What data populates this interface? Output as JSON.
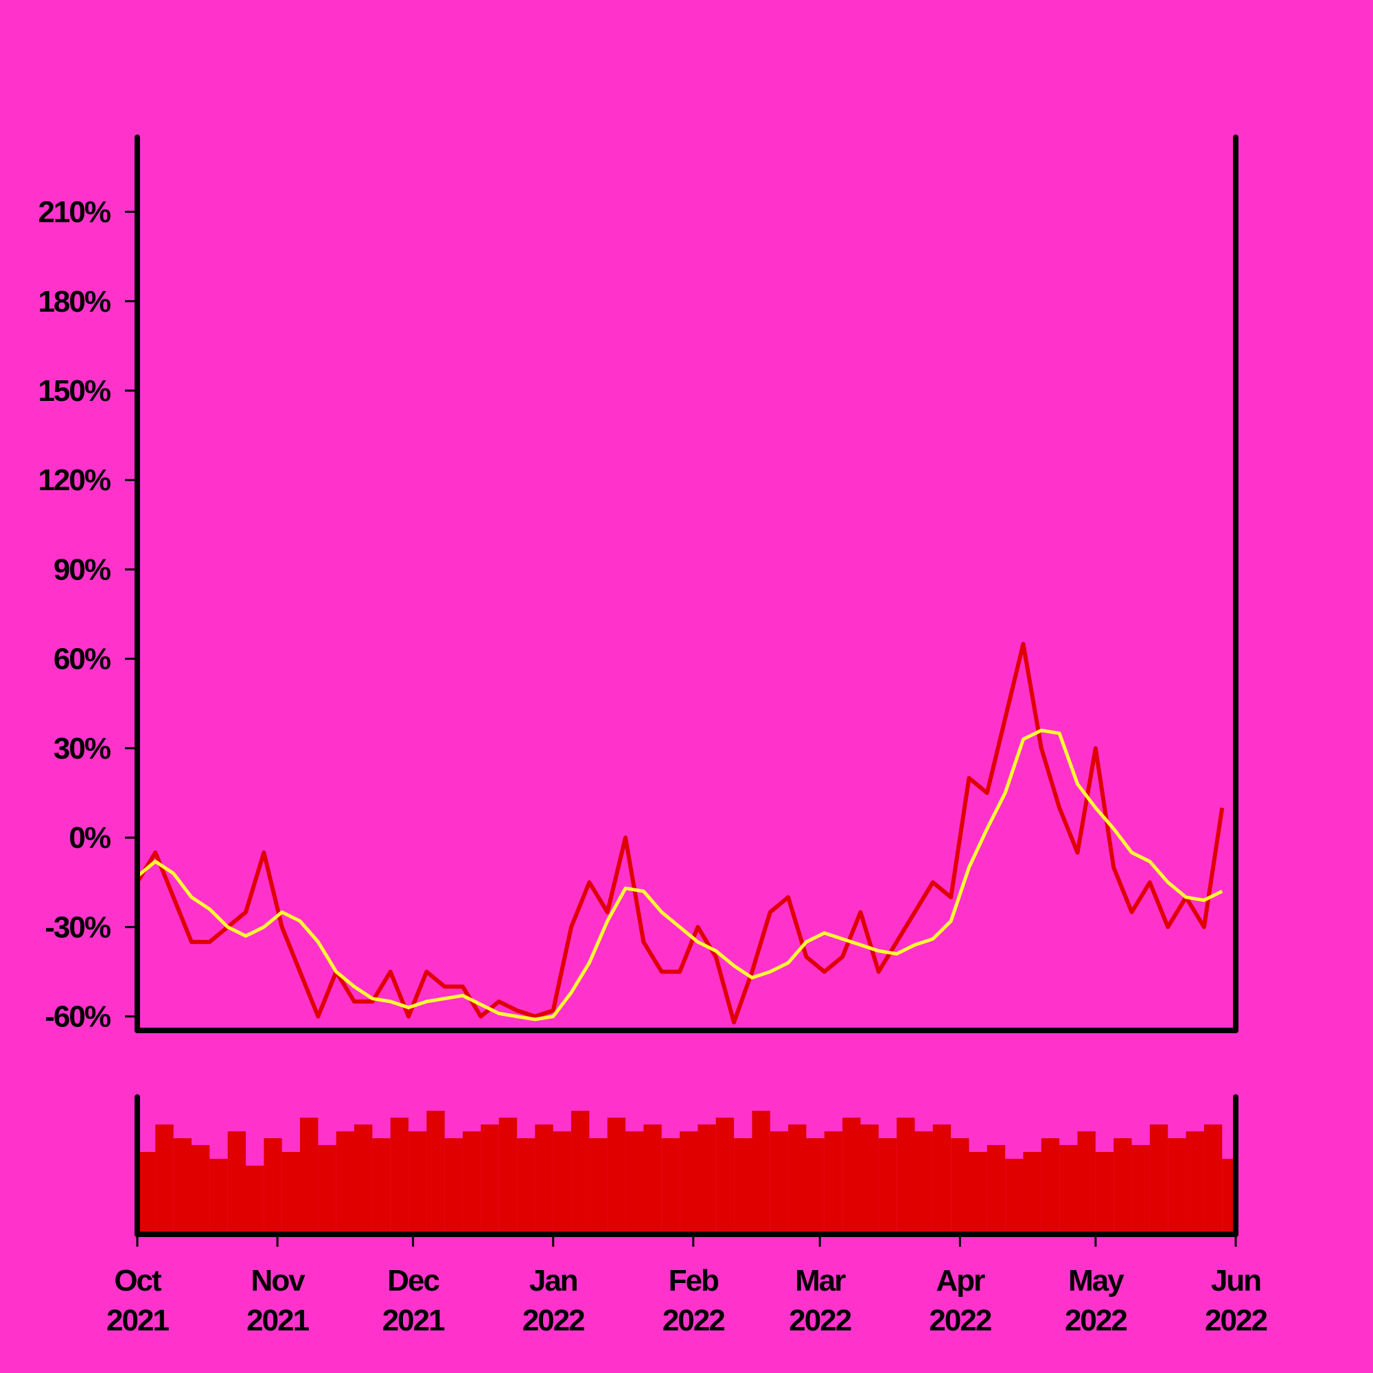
{
  "chart_data": {
    "type": "line",
    "x": [
      0,
      4,
      8,
      12,
      16,
      20,
      24,
      28,
      32,
      36,
      40,
      44,
      48,
      52,
      56,
      60,
      64,
      68,
      72,
      76,
      80,
      84,
      88,
      92,
      96,
      100,
      104,
      108,
      112,
      116,
      120,
      124,
      128,
      132,
      136,
      140,
      144,
      148,
      152,
      156,
      160,
      164,
      168,
      172,
      176,
      180,
      184,
      188,
      192,
      196,
      200,
      204,
      208,
      212,
      216,
      220,
      224,
      228,
      232,
      236,
      240
    ],
    "series": [
      {
        "color": "#e00000",
        "values": [
          -15,
          -5,
          -20,
          -35,
          -35,
          -30,
          -25,
          -5,
          -30,
          -45,
          -60,
          -45,
          -55,
          -55,
          -45,
          -60,
          -45,
          -50,
          -50,
          -60,
          -55,
          -58,
          -60,
          -58,
          -30,
          -15,
          -25,
          0,
          -35,
          -45,
          -45,
          -30,
          -40,
          -62,
          -45,
          -25,
          -20,
          -40,
          -45,
          -40,
          -25,
          -45,
          -35,
          -25,
          -15,
          -20,
          20,
          15,
          40,
          65,
          30,
          10,
          -5,
          30,
          -10,
          -25,
          -15,
          -30,
          -20,
          -30,
          10
        ]
      },
      {
        "color": "#ffff33",
        "values": [
          -13,
          -8,
          -12,
          -20,
          -24,
          -30,
          -33,
          -30,
          -25,
          -28,
          -35,
          -45,
          -50,
          -54,
          -55,
          -57,
          -55,
          -54,
          -53,
          -56,
          -59,
          -60,
          -61,
          -60,
          -52,
          -42,
          -28,
          -17,
          -18,
          -25,
          -30,
          -35,
          -38,
          -43,
          -47,
          -45,
          -42,
          -35,
          -32,
          -34,
          -36,
          -38,
          -39,
          -36,
          -34,
          -28,
          -10,
          3,
          15,
          33,
          36,
          35,
          18,
          10,
          3,
          -5,
          -8,
          -15,
          -20,
          -21,
          -18
        ]
      }
    ],
    "xlim": [
      0,
      243
    ],
    "xticks": [
      {
        "value": 0,
        "label": "Oct 2021"
      },
      {
        "value": 31,
        "label": "Nov 2021"
      },
      {
        "value": 61,
        "label": "Dec 2021"
      },
      {
        "value": 92,
        "label": "Jan 2022"
      },
      {
        "value": 123,
        "label": "Feb 2022"
      },
      {
        "value": 151,
        "label": "Mar 2022"
      },
      {
        "value": 182,
        "label": "Apr 2022"
      },
      {
        "value": 212,
        "label": "May 2022"
      },
      {
        "value": 243,
        "label": "Jun 2022"
      }
    ],
    "ylim": [
      -64.7,
      235
    ],
    "yticks": [
      {
        "value": -60,
        "label": "-60%"
      },
      {
        "value": -30,
        "label": "-30%"
      },
      {
        "value": 0,
        "label": "0%"
      },
      {
        "value": 30,
        "label": "30%"
      },
      {
        "value": 60,
        "label": "60%"
      },
      {
        "value": 90,
        "label": "90%"
      },
      {
        "value": 120,
        "label": "120%"
      },
      {
        "value": 150,
        "label": "150%"
      },
      {
        "value": 180,
        "label": "180%"
      },
      {
        "value": 210,
        "label": "210%"
      }
    ],
    "volume": {
      "color": "#e00000",
      "ylim": [
        0,
        100
      ],
      "values": [
        60,
        80,
        70,
        65,
        55,
        75,
        50,
        70,
        60,
        85,
        65,
        75,
        80,
        70,
        85,
        75,
        90,
        70,
        75,
        80,
        85,
        70,
        80,
        75,
        90,
        70,
        85,
        75,
        80,
        70,
        75,
        80,
        85,
        70,
        90,
        75,
        80,
        70,
        75,
        85,
        80,
        70,
        85,
        75,
        80,
        70,
        60,
        65,
        55,
        60,
        70,
        65,
        75,
        60,
        70,
        65,
        80,
        70,
        75,
        80,
        55
      ]
    }
  }
}
